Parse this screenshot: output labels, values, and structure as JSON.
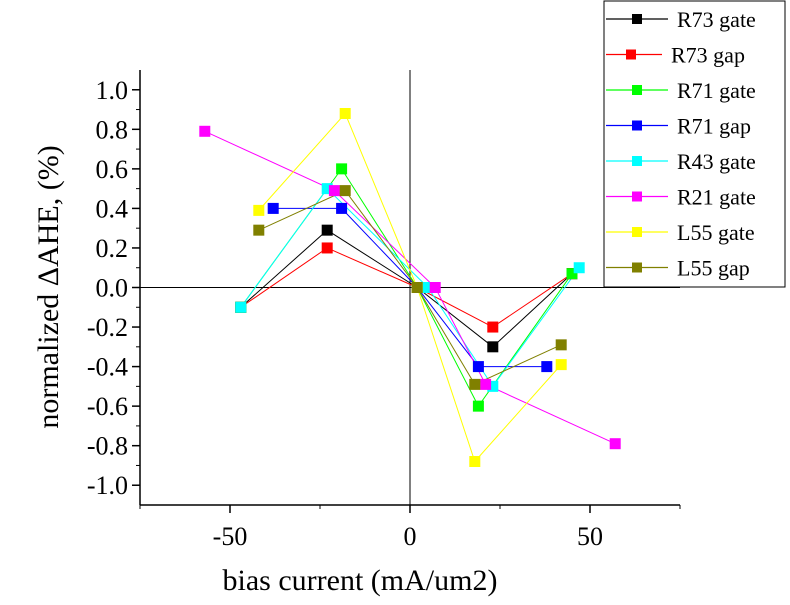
{
  "chart_data": {
    "type": "line",
    "title": "",
    "xlabel": "bias current (mA/um2)",
    "ylabel": "normalized ΔAHE, (%)",
    "xlim": [
      -75,
      75
    ],
    "ylim": [
      -1.1,
      1.1
    ],
    "xticks": [
      -50,
      0,
      50
    ],
    "xtick_labels": [
      "-50",
      "0",
      "50"
    ],
    "yticks": [
      1.0,
      0.8,
      0.6,
      0.4,
      0.2,
      0.0,
      -0.2,
      -0.4,
      -0.6,
      -0.8,
      -1.0
    ],
    "ytick_labels": [
      "1.0",
      "0.8",
      "0.6",
      "0.4",
      "0.2",
      "0.0",
      "-0.2",
      "-0.4",
      "-0.6",
      "-0.8",
      "-1.0"
    ],
    "grid": false,
    "legend_position": "top-right",
    "series": [
      {
        "name": "R73 gate",
        "color": "#000000",
        "x": [
          -47,
          -23,
          2,
          23,
          45
        ],
        "y": [
          -0.1,
          0.29,
          0.0,
          -0.3,
          0.07
        ]
      },
      {
        "name": "R73 gap",
        "color": "#ff0000",
        "x": [
          -47,
          -23,
          2,
          23,
          45
        ],
        "y": [
          -0.1,
          0.2,
          0.0,
          -0.2,
          0.07
        ]
      },
      {
        "name": "R71 gate",
        "color": "#00ff00",
        "x": [
          -47,
          -19,
          2,
          19,
          45
        ],
        "y": [
          -0.1,
          0.6,
          0.0,
          -0.6,
          0.07
        ]
      },
      {
        "name": "R71 gap",
        "color": "#0000ff",
        "x": [
          -38,
          -19,
          2,
          19,
          38
        ],
        "y": [
          0.4,
          0.4,
          0.0,
          -0.4,
          -0.4
        ]
      },
      {
        "name": "R43 gate",
        "color": "#00ffff",
        "x": [
          -47,
          -23,
          5,
          23,
          47
        ],
        "y": [
          -0.1,
          0.5,
          0.0,
          -0.5,
          0.1
        ]
      },
      {
        "name": "R21 gate",
        "color": "#ff00ff",
        "x": [
          -57,
          -21,
          7,
          21,
          57
        ],
        "y": [
          0.79,
          0.49,
          0.0,
          -0.49,
          -0.79
        ]
      },
      {
        "name": "L55 gate",
        "color": "#ffff00",
        "x": [
          -42,
          -18,
          2,
          18,
          42
        ],
        "y": [
          0.39,
          0.88,
          0.0,
          -0.88,
          -0.39
        ]
      },
      {
        "name": "L55 gap",
        "color": "#808000",
        "x": [
          -42,
          -18,
          2,
          18,
          42
        ],
        "y": [
          0.29,
          0.49,
          0.0,
          -0.49,
          -0.29
        ]
      }
    ]
  }
}
